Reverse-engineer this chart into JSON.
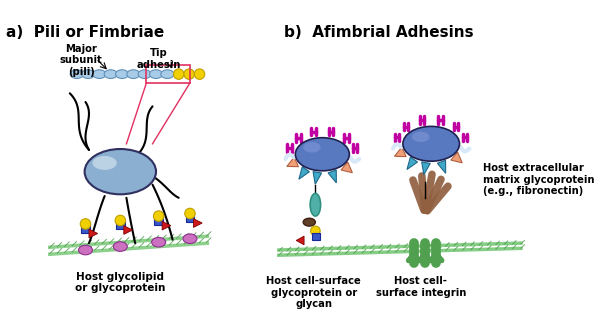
{
  "title_a": "a)  Pili or Fimbriae",
  "title_b": "b)  Afimbrial Adhesins",
  "label_major_subunit": "Major\nsubunit\n(pili)",
  "label_tip_adhesin": "Tip\nadhesin",
  "label_host_glycolipid": "Host glycolipid\nor glycoprotein",
  "label_host_cell_surface_glyco": "Host cell-surface\nglycoprotein or\nglycan",
  "label_host_extracellular": "Host extracellular\nmatrix glycoprotein\n(e.g., fibronectin)",
  "label_host_integrin": "Host cell-\nsurface integrin",
  "bg_color": "#ffffff",
  "bacterium_a_color": "#8aafd0",
  "bacterium_a_edge": "#303060",
  "bacterium_b_color": "#5878c0",
  "bacterium_b_edge": "#202050",
  "pili_color": "#a8cce8",
  "pili_edge": "#6090b8",
  "tip_color": "#f0d000",
  "tip_edge": "#c0a000",
  "membrane_green": "#78c878",
  "membrane_dark": "#4a9a4a",
  "glycolipid_pink": "#cc70c0",
  "glycolipid_edge": "#903090",
  "blue_sq": "#3858c8",
  "blue_sq_edge": "#182898",
  "red_tri": "#cc1818",
  "yellow_ci": "#f0d000",
  "magenta": "#c000a0",
  "magenta_edge": "#800070",
  "cyan_sp": "#40a8c8",
  "cyan_edge": "#206888",
  "peach_sp": "#f0a078",
  "peach_edge": "#b06040",
  "white_sp": "#d8e8f8",
  "white_edge": "#90a8c0",
  "brown": "#906040",
  "green_int": "#50a050",
  "teal_oval": "#50b0a8",
  "dark_oval": "#604028"
}
